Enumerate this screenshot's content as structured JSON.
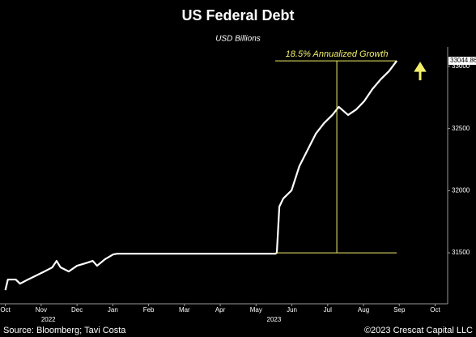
{
  "chart_data": {
    "type": "line",
    "title": "US Federal Debt",
    "subtitle": "USD Billions",
    "source": "Source: Bloomberg; Tavi Costa",
    "credit": "©2023 Crescat Capital LLC",
    "annotation": {
      "label": "18.5% Annualized Growth",
      "color": "#f3ef6c"
    },
    "series": [
      {
        "name": "US Federal Debt",
        "color": "#ffffff",
        "x": [
          0,
          0.07,
          0.29,
          0.41,
          0.63,
          0.86,
          1.09,
          1.31,
          1.43,
          1.54,
          1.77,
          2.0,
          2.22,
          2.44,
          2.56,
          2.78,
          3.01,
          3.12,
          7.54,
          7.58,
          7.65,
          7.76,
          7.99,
          8.21,
          8.44,
          8.67,
          8.9,
          9.13,
          9.31,
          9.57,
          9.8,
          10.02,
          10.25,
          10.48,
          10.71,
          10.93
        ],
        "values": [
          31200,
          31285,
          31285,
          31252,
          31285,
          31317,
          31350,
          31383,
          31435,
          31383,
          31350,
          31396,
          31415,
          31435,
          31396,
          31448,
          31487,
          31493,
          31493,
          31500,
          31872,
          31937,
          32002,
          32198,
          32328,
          32459,
          32544,
          32609,
          32674,
          32609,
          32654,
          32720,
          32818,
          32896,
          32961,
          33044.86
        ]
      }
    ],
    "xlim": [
      -0.15,
      12.35
    ],
    "xticks": [
      {
        "value": 0,
        "label": "Oct"
      },
      {
        "value": 1,
        "label": "Nov"
      },
      {
        "value": 2,
        "label": "Dec"
      },
      {
        "value": 3,
        "label": "Jan"
      },
      {
        "value": 4,
        "label": "Feb"
      },
      {
        "value": 5,
        "label": "Mar"
      },
      {
        "value": 6,
        "label": "Apr"
      },
      {
        "value": 7,
        "label": "May"
      },
      {
        "value": 8,
        "label": "Jun"
      },
      {
        "value": 9,
        "label": "Jul"
      },
      {
        "value": 10,
        "label": "Aug"
      },
      {
        "value": 11,
        "label": "Sep"
      },
      {
        "value": 12,
        "label": "Oct"
      }
    ],
    "year_ticks": [
      {
        "value": 1.2,
        "label": "2022"
      },
      {
        "value": 7.5,
        "label": "2023"
      }
    ],
    "ylim": [
      31090,
      33130
    ],
    "yticks": [
      31500,
      32000,
      32500,
      33000
    ],
    "grid": false
  }
}
